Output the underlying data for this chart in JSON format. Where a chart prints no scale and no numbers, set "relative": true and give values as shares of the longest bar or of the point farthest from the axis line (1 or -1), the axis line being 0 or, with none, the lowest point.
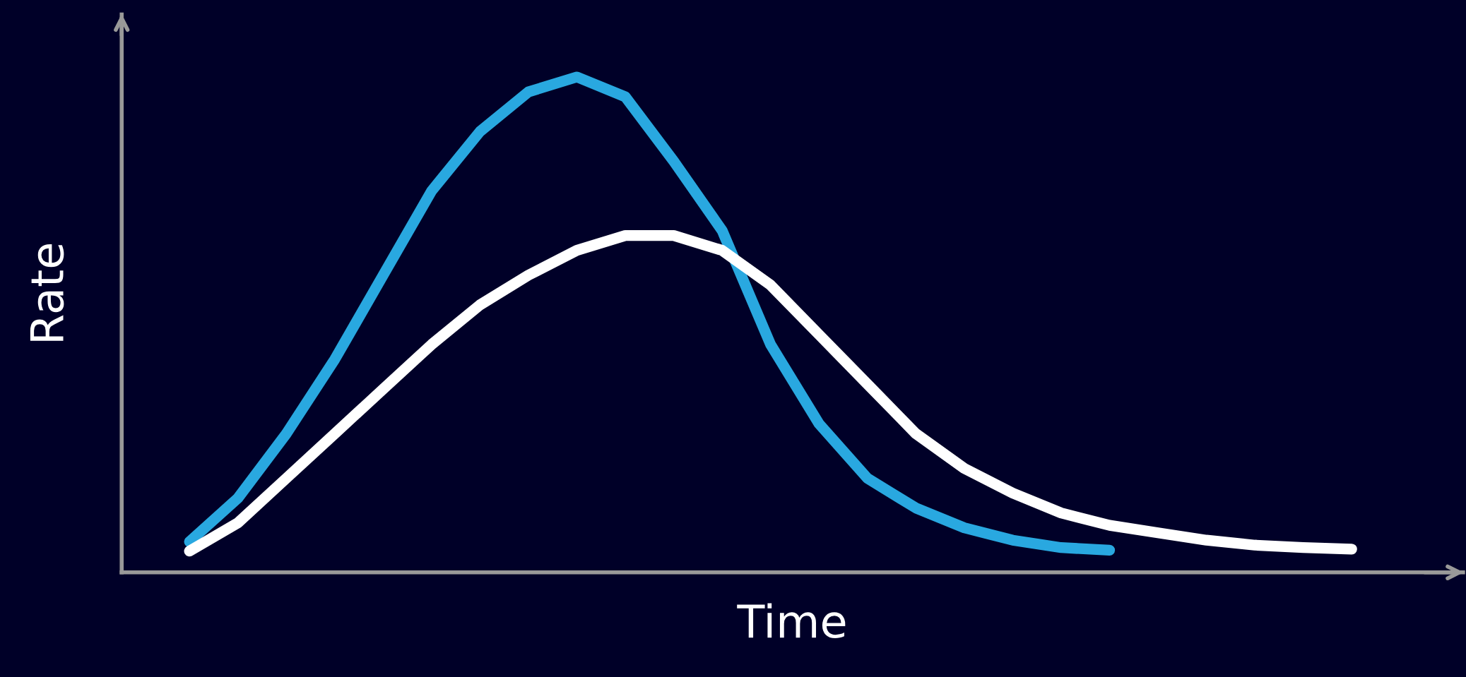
{
  "chart_data": {
    "type": "line",
    "relative": true,
    "xlabel": "Time",
    "ylabel": "Rate",
    "legend": false,
    "grid": false,
    "line_style": "solid",
    "categories": [
      null,
      null,
      null,
      null,
      null,
      null,
      null,
      null,
      null,
      null,
      null,
      null,
      null,
      null,
      null,
      null,
      null,
      null,
      null,
      null,
      null,
      null,
      null,
      null,
      null
    ],
    "series": [
      {
        "color": "#29a8e0",
        "values": [
          0.062,
          0.15,
          0.28,
          0.43,
          0.6,
          0.77,
          0.89,
          0.97,
          1,
          0.96,
          0.83,
          0.69,
          0.46,
          0.3,
          0.19,
          0.13,
          0.09,
          0.065,
          0.05,
          0.045,
          null,
          null,
          null,
          null,
          null
        ]
      },
      {
        "color": "#ffffff",
        "values": [
          0.043,
          0.1,
          0.19,
          0.28,
          0.37,
          0.46,
          0.54,
          0.6,
          0.65,
          0.68,
          0.68,
          0.65,
          0.58,
          0.48,
          0.38,
          0.28,
          0.21,
          0.16,
          0.12,
          0.095,
          0.08,
          0.065,
          0.055,
          0.05,
          0.047
        ]
      }
    ]
  }
}
